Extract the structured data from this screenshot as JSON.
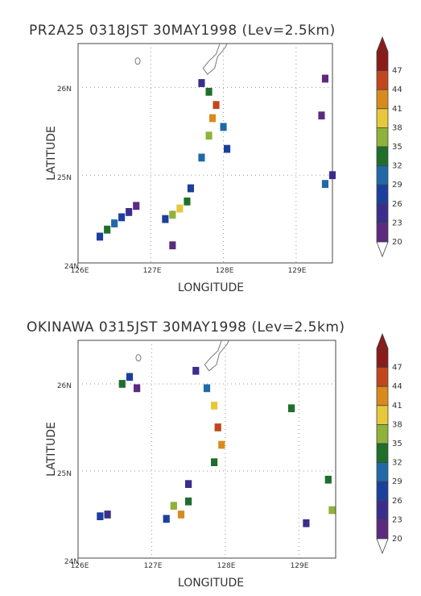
{
  "figures": [
    {
      "title": "PR2A25 0318JST 30MAY1998 (Lev=2.5km)",
      "xlabel": "LONGITUDE",
      "ylabel": "LATITUDE",
      "xticks": [
        "126E",
        "127E",
        "128E",
        "129E"
      ],
      "yticks": [
        "24N",
        "25N",
        "26N"
      ]
    },
    {
      "title": "OKINAWA 0315JST 30MAY1998 (Lev=2.5km)",
      "xlabel": "LONGITUDE",
      "ylabel": "LATITUDE",
      "xticks": [
        "126E",
        "127E",
        "128E",
        "129E"
      ],
      "yticks": [
        "24N",
        "25N",
        "26N"
      ]
    }
  ],
  "colorbar": {
    "levels": [
      "47",
      "44",
      "41",
      "38",
      "35",
      "32",
      "29",
      "26",
      "23",
      "20"
    ],
    "colors": [
      "#8b1a1a",
      "#c2461c",
      "#d98a1e",
      "#e6c83a",
      "#8fb33a",
      "#1f6e2c",
      "#1f6aa6",
      "#1c3f9e",
      "#3a2d8c",
      "#5c2a7e"
    ]
  },
  "chart_data": [
    {
      "type": "heatmap",
      "title": "PR2A25 0318JST 30MAY1998 (Lev=2.5km)",
      "xlabel": "LONGITUDE",
      "ylabel": "LATITUDE",
      "xlim": [
        126,
        129.5
      ],
      "ylim": [
        24,
        26.5
      ],
      "xticks": [
        "126E",
        "127E",
        "128E",
        "129E"
      ],
      "yticks": [
        "24N",
        "25N",
        "26N"
      ],
      "color_levels": [
        20,
        23,
        26,
        29,
        32,
        35,
        38,
        41,
        44,
        47
      ],
      "cells": [
        {
          "lon": 126.3,
          "lat": 24.3,
          "v": 27
        },
        {
          "lon": 126.4,
          "lat": 24.38,
          "v": 33
        },
        {
          "lon": 126.5,
          "lat": 24.45,
          "v": 30
        },
        {
          "lon": 126.6,
          "lat": 24.52,
          "v": 26
        },
        {
          "lon": 126.7,
          "lat": 24.58,
          "v": 24
        },
        {
          "lon": 126.8,
          "lat": 24.65,
          "v": 22
        },
        {
          "lon": 127.2,
          "lat": 24.5,
          "v": 28
        },
        {
          "lon": 127.3,
          "lat": 24.55,
          "v": 36
        },
        {
          "lon": 127.4,
          "lat": 24.62,
          "v": 40
        },
        {
          "lon": 127.5,
          "lat": 24.7,
          "v": 33
        },
        {
          "lon": 127.55,
          "lat": 24.85,
          "v": 27
        },
        {
          "lon": 127.3,
          "lat": 24.2,
          "v": 22
        },
        {
          "lon": 127.7,
          "lat": 25.2,
          "v": 30
        },
        {
          "lon": 127.8,
          "lat": 25.45,
          "v": 37
        },
        {
          "lon": 127.85,
          "lat": 25.65,
          "v": 42
        },
        {
          "lon": 127.9,
          "lat": 25.8,
          "v": 44
        },
        {
          "lon": 127.8,
          "lat": 25.95,
          "v": 34
        },
        {
          "lon": 127.7,
          "lat": 26.05,
          "v": 25
        },
        {
          "lon": 128.0,
          "lat": 25.55,
          "v": 30
        },
        {
          "lon": 128.05,
          "lat": 25.3,
          "v": 26
        },
        {
          "lon": 129.4,
          "lat": 24.9,
          "v": 29
        },
        {
          "lon": 129.5,
          "lat": 25.0,
          "v": 24
        },
        {
          "lon": 129.35,
          "lat": 25.68,
          "v": 22
        },
        {
          "lon": 129.4,
          "lat": 26.1,
          "v": 21
        }
      ]
    },
    {
      "type": "heatmap",
      "title": "OKINAWA 0315JST 30MAY1998 (Lev=2.5km)",
      "xlabel": "LONGITUDE",
      "ylabel": "LATITUDE",
      "xlim": [
        126,
        129.5
      ],
      "ylim": [
        24,
        26.5
      ],
      "xticks": [
        "126E",
        "127E",
        "128E",
        "129E"
      ],
      "yticks": [
        "24N",
        "25N",
        "26N"
      ],
      "color_levels": [
        20,
        23,
        26,
        29,
        32,
        35,
        38,
        41,
        44,
        47
      ],
      "cells": [
        {
          "lon": 126.6,
          "lat": 26.0,
          "v": 33
        },
        {
          "lon": 126.7,
          "lat": 26.08,
          "v": 28
        },
        {
          "lon": 126.8,
          "lat": 25.95,
          "v": 22
        },
        {
          "lon": 127.75,
          "lat": 25.95,
          "v": 30
        },
        {
          "lon": 127.85,
          "lat": 25.75,
          "v": 40
        },
        {
          "lon": 127.9,
          "lat": 25.5,
          "v": 45
        },
        {
          "lon": 127.95,
          "lat": 25.3,
          "v": 42
        },
        {
          "lon": 127.85,
          "lat": 25.1,
          "v": 33
        },
        {
          "lon": 127.6,
          "lat": 26.15,
          "v": 25
        },
        {
          "lon": 127.3,
          "lat": 24.6,
          "v": 37
        },
        {
          "lon": 127.4,
          "lat": 24.5,
          "v": 41
        },
        {
          "lon": 127.5,
          "lat": 24.65,
          "v": 32
        },
        {
          "lon": 127.2,
          "lat": 24.45,
          "v": 26
        },
        {
          "lon": 126.3,
          "lat": 24.48,
          "v": 28
        },
        {
          "lon": 126.4,
          "lat": 24.5,
          "v": 24
        },
        {
          "lon": 128.9,
          "lat": 25.72,
          "v": 34
        },
        {
          "lon": 129.4,
          "lat": 24.9,
          "v": 33
        },
        {
          "lon": 129.45,
          "lat": 24.55,
          "v": 37
        },
        {
          "lon": 129.1,
          "lat": 24.4,
          "v": 25
        },
        {
          "lon": 127.5,
          "lat": 24.85,
          "v": 23
        }
      ]
    }
  ]
}
